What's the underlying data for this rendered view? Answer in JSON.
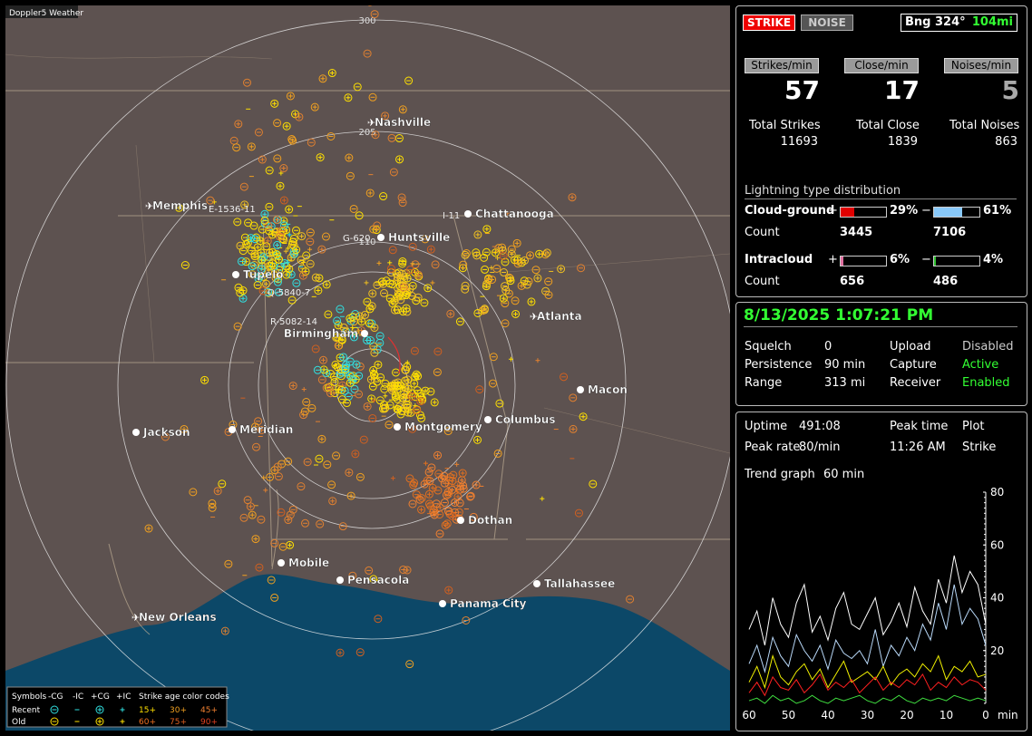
{
  "map": {
    "title": "Doppler5 Weather",
    "range_labels": [
      "300",
      "205",
      "110"
    ],
    "cities": [
      "Nashville",
      "Memphis",
      "Chattanooga",
      "Huntsville",
      "Tupelo",
      "Atlanta",
      "Birmingham",
      "Macon",
      "Jackson",
      "Meridian",
      "Montgomery",
      "Columbus",
      "Dothan",
      "Mobile",
      "Pensacola",
      "Tallahassee",
      "Panama City",
      "New Orleans"
    ],
    "strike_labels": [
      "E-1536-11",
      "G-620",
      "Q-5840-7",
      "R-5082-14",
      "I-11"
    ],
    "legend": {
      "symbols": "Symbols",
      "columns": [
        "-CG",
        "-IC",
        "+CG",
        "+IC"
      ],
      "age_title": "Strike age color codes",
      "rows": [
        "Recent",
        "Old"
      ],
      "ages": [
        "15+",
        "30+",
        "45+",
        "60+",
        "75+",
        "90+"
      ]
    }
  },
  "header": {
    "strike": "STRIKE",
    "noise": "NOISE",
    "bearing": "Bng 324°",
    "distance": "104mi"
  },
  "rates": {
    "labels": [
      "Strikes/min",
      "Close/min",
      "Noises/min"
    ],
    "values": [
      57,
      17,
      5
    ],
    "total_labels": [
      "Total Strikes",
      "Total Close",
      "Total Noises"
    ],
    "totals": [
      11693,
      1839,
      863
    ]
  },
  "distribution": {
    "title": "Lightning type distribution",
    "count_label": "Count",
    "rows": [
      {
        "name": "Cloud-ground",
        "plus": "+",
        "minus": "−",
        "plus_pct": {
          "value": 29,
          "label": "29%"
        },
        "minus_pct": {
          "value": 61,
          "label": "61%"
        },
        "plus_count": 3445,
        "minus_count": 7106
      },
      {
        "name": "Intracloud",
        "plus": "+",
        "minus": "−",
        "plus_pct": {
          "value": 6,
          "label": "6%"
        },
        "minus_pct": {
          "value": 4,
          "label": "4%"
        },
        "plus_count": 656,
        "minus_count": 486
      }
    ]
  },
  "status": {
    "datetime": "8/13/2025 1:07:21 PM",
    "rows": [
      [
        "Squelch",
        "0",
        "Upload",
        "Disabled"
      ],
      [
        "Persistence",
        "90 min",
        "Capture",
        "Active"
      ],
      [
        "Range",
        "313 mi",
        "Receiver",
        "Enabled"
      ]
    ]
  },
  "stats": {
    "rows": [
      [
        "Uptime",
        "491:08",
        "Peak time",
        "Plot"
      ],
      [
        "Peak rate",
        "80/min",
        "11:26 AM",
        "Strike"
      ]
    ],
    "trend_label": "Trend graph",
    "trend_value": "60 min"
  },
  "chart_data": {
    "type": "line",
    "x": [
      60,
      58,
      56,
      54,
      52,
      50,
      48,
      46,
      44,
      42,
      40,
      38,
      36,
      34,
      32,
      30,
      28,
      26,
      24,
      22,
      20,
      18,
      16,
      14,
      12,
      10,
      8,
      6,
      4,
      2,
      0
    ],
    "xlim": [
      60,
      0
    ],
    "xticks": [
      60,
      50,
      40,
      30,
      20,
      10,
      0
    ],
    "xlabel": "min",
    "ylim": [
      0,
      80
    ],
    "yticks": [
      20,
      40,
      60,
      80
    ],
    "series": [
      {
        "color": "#ffffff",
        "values": [
          28,
          35,
          22,
          40,
          30,
          25,
          38,
          45,
          27,
          33,
          24,
          36,
          42,
          30,
          28,
          34,
          40,
          26,
          31,
          38,
          29,
          44,
          35,
          30,
          47,
          38,
          56,
          42,
          50,
          45,
          30
        ]
      },
      {
        "color": "#b8d8f8",
        "values": [
          15,
          22,
          12,
          25,
          18,
          14,
          26,
          20,
          16,
          22,
          13,
          24,
          19,
          17,
          20,
          15,
          28,
          14,
          22,
          18,
          25,
          20,
          30,
          24,
          38,
          28,
          45,
          30,
          36,
          32,
          22
        ]
      },
      {
        "color": "#f0f000",
        "values": [
          8,
          14,
          6,
          18,
          10,
          7,
          12,
          15,
          9,
          13,
          6,
          11,
          16,
          8,
          10,
          12,
          9,
          14,
          7,
          11,
          13,
          10,
          15,
          12,
          18,
          9,
          14,
          12,
          16,
          10,
          11
        ]
      },
      {
        "color": "#ff2020",
        "values": [
          4,
          8,
          3,
          10,
          6,
          5,
          9,
          4,
          7,
          11,
          5,
          8,
          6,
          9,
          4,
          7,
          10,
          5,
          8,
          6,
          9,
          7,
          11,
          5,
          8,
          6,
          10,
          7,
          9,
          8,
          5
        ]
      },
      {
        "color": "#40e040",
        "values": [
          1,
          2,
          0,
          3,
          1,
          2,
          0,
          1,
          3,
          1,
          0,
          2,
          1,
          2,
          3,
          1,
          0,
          2,
          1,
          3,
          1,
          0,
          2,
          1,
          2,
          1,
          3,
          2,
          1,
          2,
          1
        ]
      }
    ]
  }
}
